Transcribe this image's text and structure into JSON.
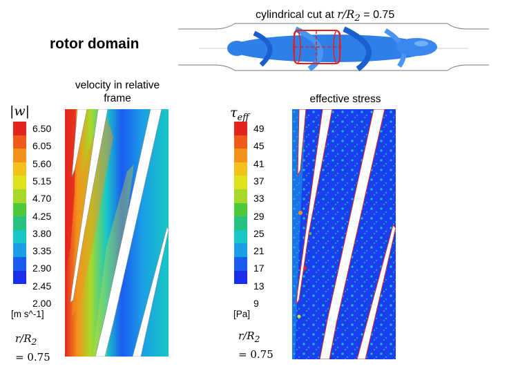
{
  "header": {
    "title": "rotor domain",
    "cut_label_prefix": "cylindrical cut at ",
    "cut_label_math": "r/R",
    "cut_label_sub": "2",
    "cut_label_value": "= 0.75"
  },
  "velocity_panel": {
    "title_line1": "velocity in relative",
    "title_line2": "frame",
    "symbol": "|w|",
    "unit": "[m s^-1]",
    "ticks": [
      "6.50",
      "6.05",
      "5.60",
      "5.15",
      "4.70",
      "4.25",
      "3.80",
      "3.35",
      "2.90",
      "2.45",
      "2.00"
    ],
    "ratio_line1": "r/R",
    "ratio_sub": "2",
    "ratio_line2": "= 0.75"
  },
  "stress_panel": {
    "title": "effective stress",
    "symbol_base": "τ",
    "symbol_sub": "eff",
    "unit": "[Pa]",
    "ticks": [
      "49",
      "45",
      "41",
      "37",
      "33",
      "29",
      "25",
      "21",
      "17",
      "13",
      "9"
    ],
    "ratio_line1": "r/R",
    "ratio_sub": "2",
    "ratio_line2": "= 0.75"
  },
  "colormap": [
    "#e2241e",
    "#ee5a1a",
    "#f4921a",
    "#f2c21a",
    "#dfe21c",
    "#a6d92a",
    "#4fc93c",
    "#27c27f",
    "#18c8c6",
    "#1a9ee6",
    "#1a5cf0",
    "#1a2fea"
  ]
}
